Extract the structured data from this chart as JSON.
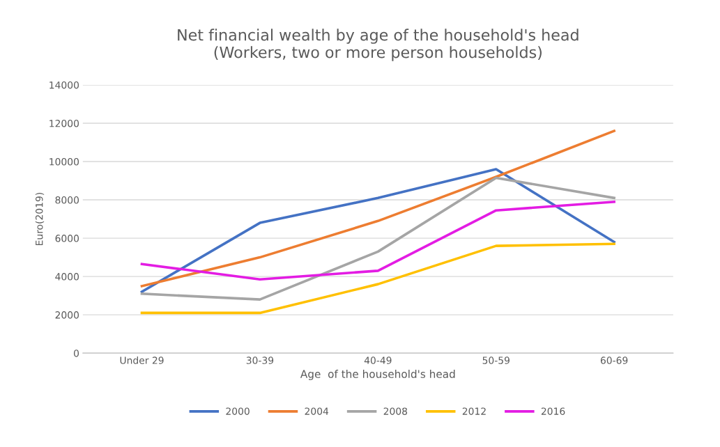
{
  "chart_data": {
    "type": "line",
    "title": "Net financial wealth by age of the household's head\n(Workers, two or more person households)",
    "xlabel": "Age  of the household's head",
    "ylabel": "Euro(2019)",
    "categories": [
      "Under 29",
      "30-39",
      "40-49",
      "50-59",
      "60-69"
    ],
    "series": [
      {
        "name": "2000",
        "color": "#4472c4",
        "values": [
          3200,
          6800,
          8100,
          9600,
          5800
        ]
      },
      {
        "name": "2004",
        "color": "#ed7d31",
        "values": [
          3500,
          5000,
          6900,
          9200,
          11600
        ]
      },
      {
        "name": "2008",
        "color": "#a5a5a5",
        "values": [
          3100,
          2800,
          5300,
          9150,
          8100
        ]
      },
      {
        "name": "2012",
        "color": "#ffc000",
        "values": [
          2100,
          2100,
          3600,
          5600,
          5700
        ]
      },
      {
        "name": "2016",
        "color": "#e31ce3",
        "values": [
          4650,
          3850,
          4300,
          7450,
          7900
        ]
      }
    ],
    "ylim": [
      0,
      14000
    ],
    "yticks": [
      0,
      2000,
      4000,
      6000,
      8000,
      10000,
      12000,
      14000
    ],
    "grid": "y",
    "legend": "bottom",
    "marker": "none",
    "line_style": "solid"
  }
}
